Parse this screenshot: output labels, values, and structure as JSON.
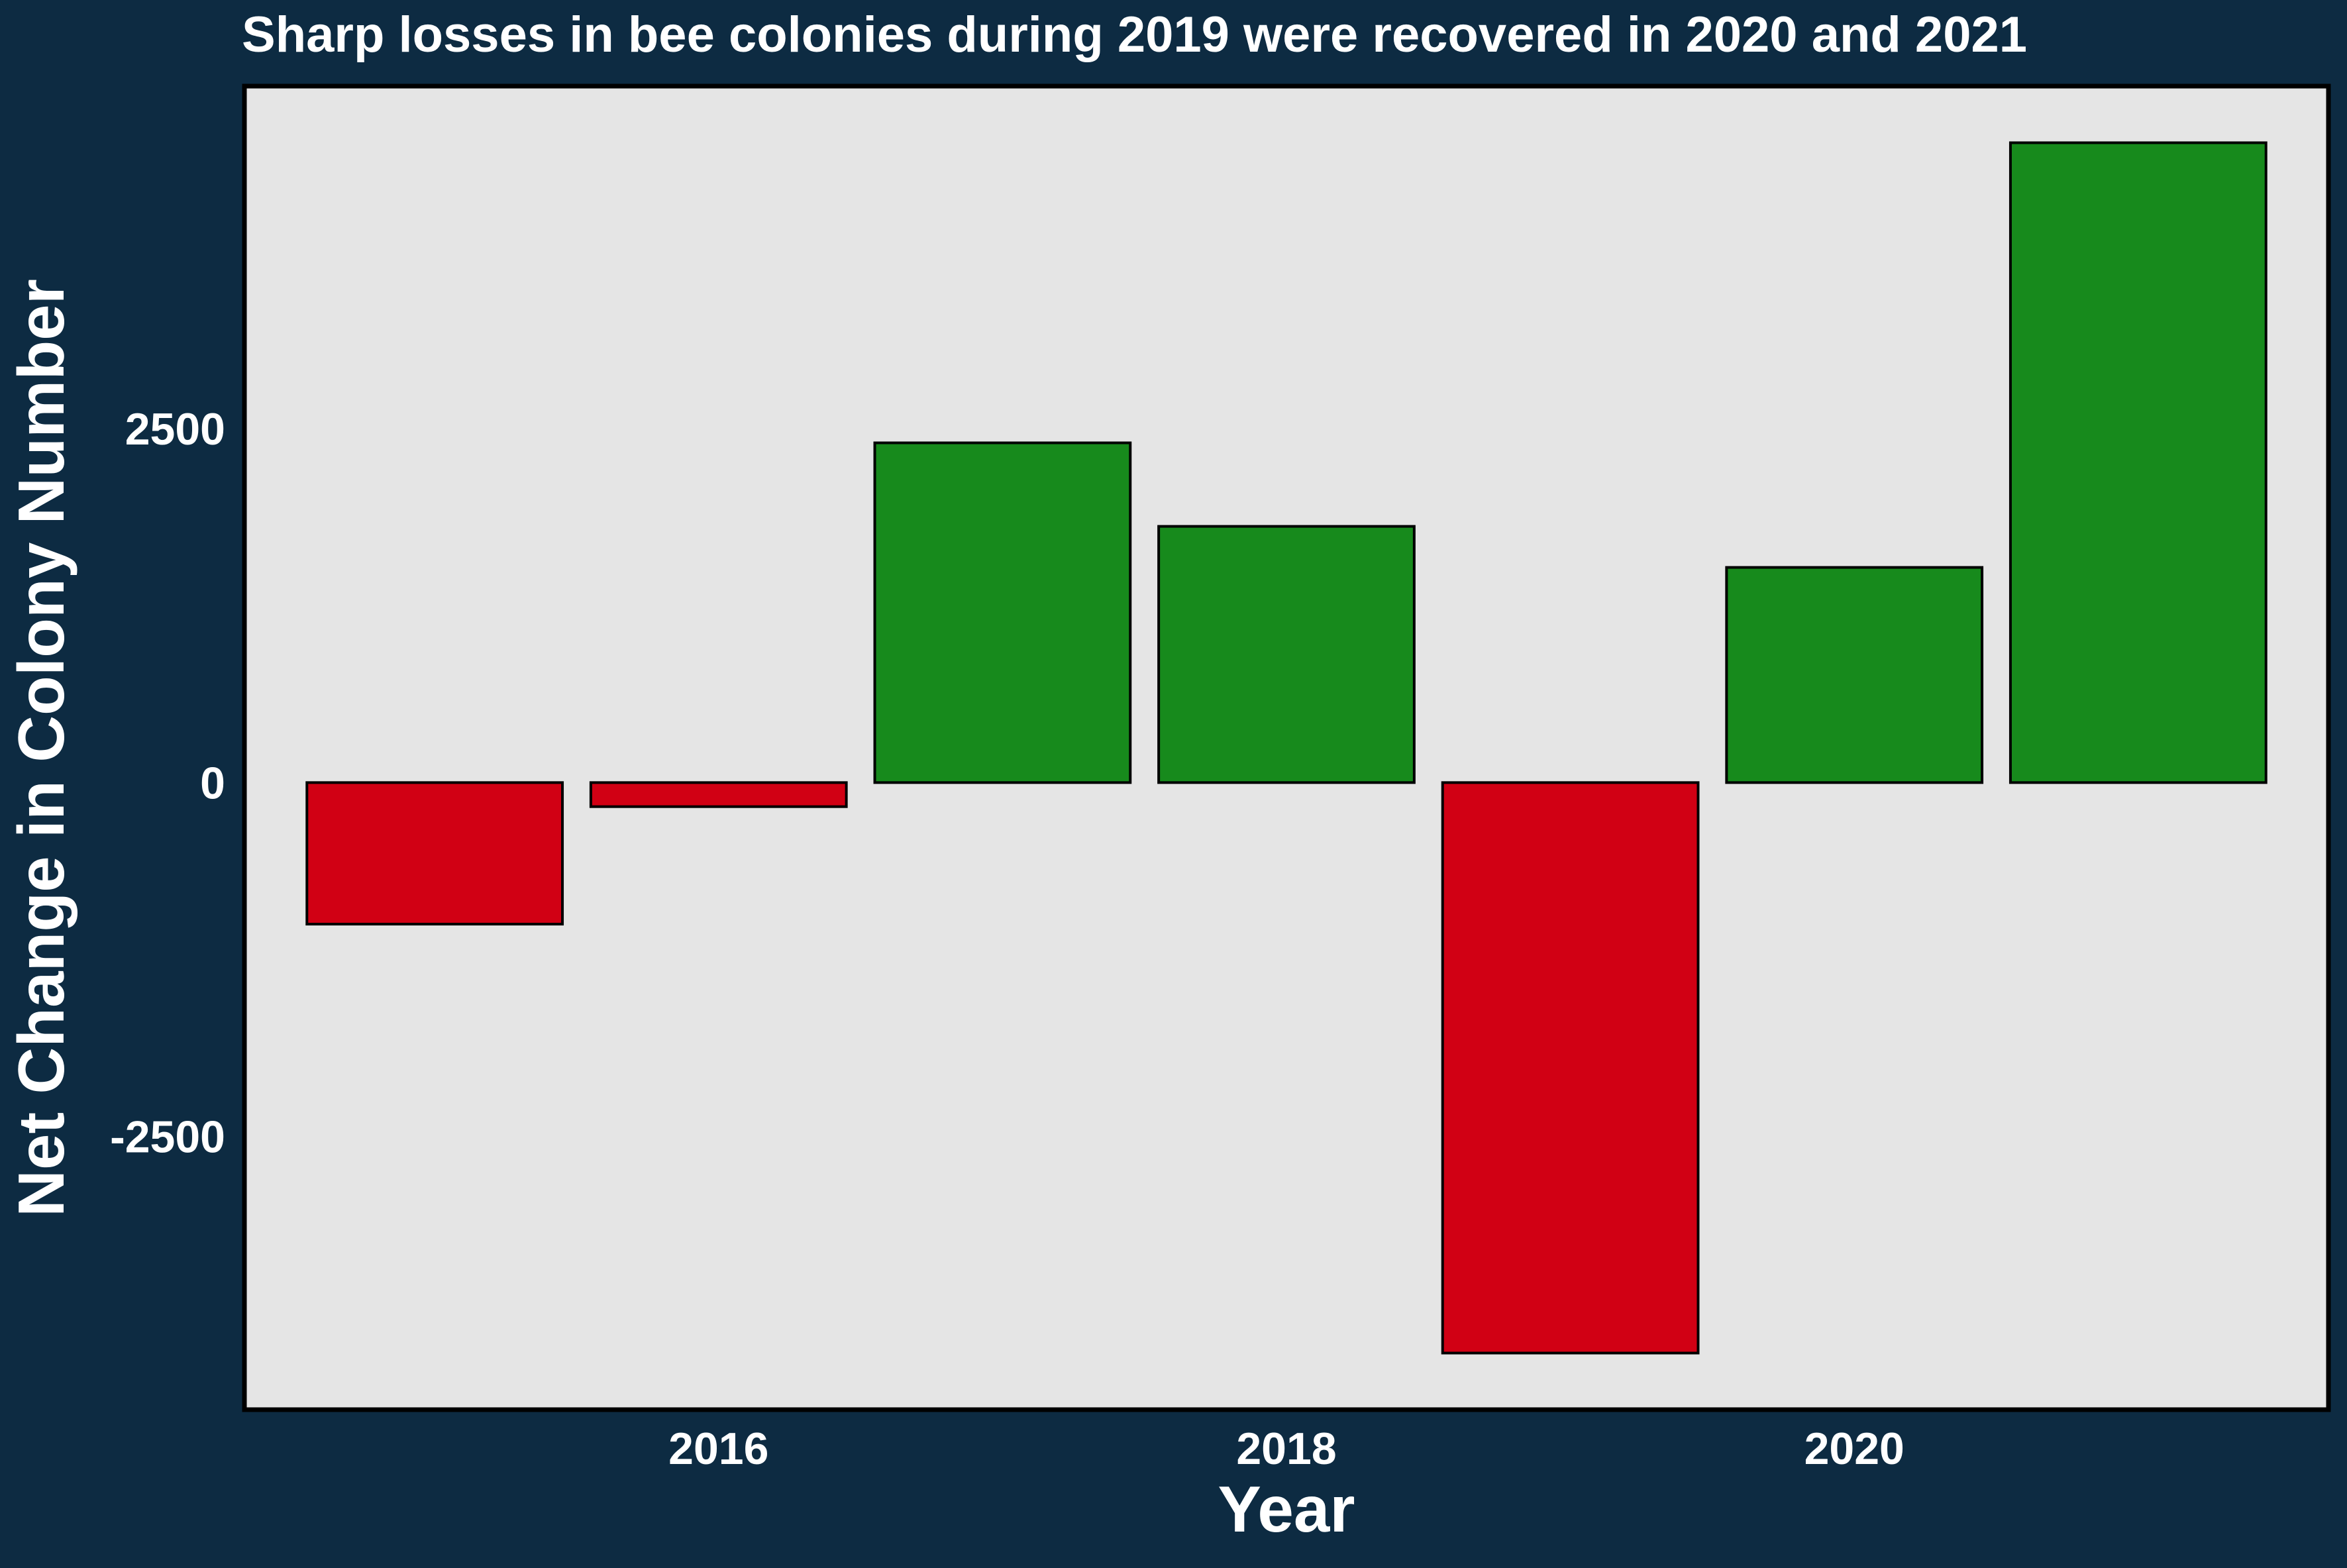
{
  "chart_data": {
    "type": "bar",
    "title": "Sharp losses in bee colonies during 2019 were recovered in 2020 and 2021",
    "xlabel": "Year",
    "ylabel": "Net Change in Colony Number",
    "x": [
      2015,
      2016,
      2017,
      2018,
      2019,
      2020,
      2021
    ],
    "values": [
      -1000,
      -170,
      2400,
      1810,
      -4030,
      1520,
      4520
    ],
    "xticks": [
      2016,
      2018,
      2020
    ],
    "xtick_labels": [
      "2016",
      "2018",
      "2020"
    ],
    "yticks": [
      -2500,
      0,
      2500
    ],
    "ytick_labels": [
      "-2500",
      "0",
      "2500"
    ],
    "ylim": [
      -4430,
      4920
    ],
    "xlim": [
      2014.33,
      2021.67
    ],
    "grid": false,
    "legend": "none",
    "colors": {
      "positive": "#178a1c",
      "negative": "#d10014",
      "panel_background": "#e5e5e5",
      "page_background": "#0d2b42",
      "text": "#ffffff",
      "bar_outline": "#000000"
    }
  }
}
